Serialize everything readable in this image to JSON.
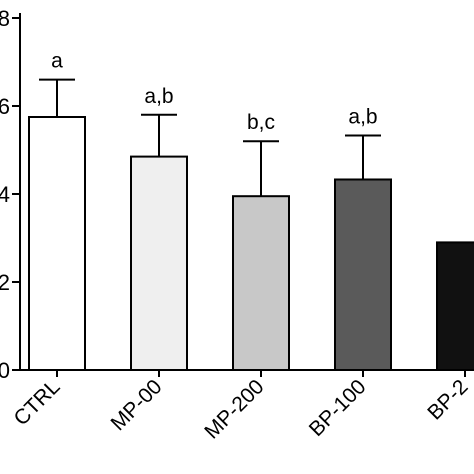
{
  "chart_data": {
    "type": "bar",
    "title": "",
    "xlabel": "",
    "ylabel": "",
    "ylim": [
      0,
      8
    ],
    "y_ticks": [
      0,
      2,
      4,
      6,
      8
    ],
    "y_tick_labels": [
      "0",
      "2",
      "4",
      "6",
      "8"
    ],
    "categories": [
      "CTRL",
      "MP-00",
      "MP-200",
      "BP-100",
      "BP-2"
    ],
    "values": [
      5.75,
      4.85,
      3.95,
      4.33,
      2.9
    ],
    "error": [
      0.85,
      0.95,
      1.25,
      1.0,
      null
    ],
    "significance_labels": [
      "a",
      "a,b",
      "b,c",
      "a,b",
      ""
    ],
    "bar_colors": [
      "#ffffff",
      "#efefef",
      "#c8c8c8",
      "#5a5a5a",
      "#111111"
    ],
    "axis_color": "#000000"
  }
}
